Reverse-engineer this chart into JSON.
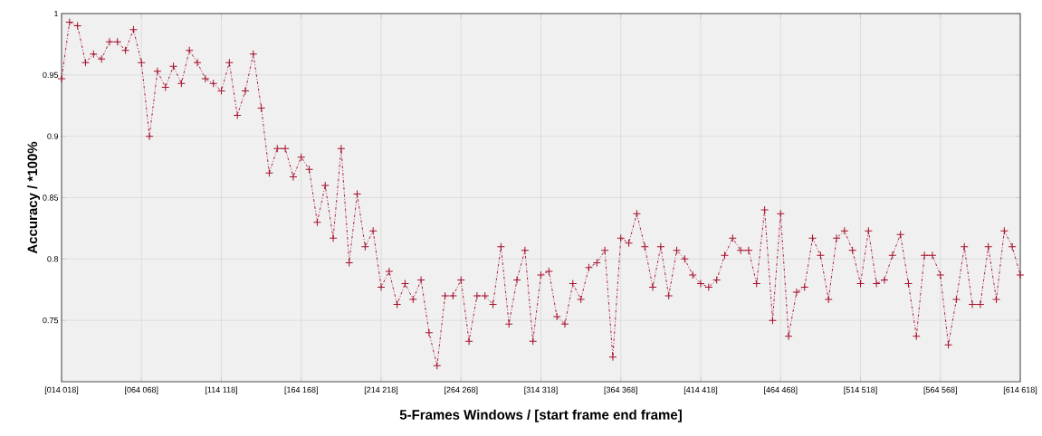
{
  "chart_data": {
    "type": "line",
    "xlabel": "5-Frames Windows / [start frame  end frame]",
    "ylabel": "Accuracy / *100%",
    "categories": [
      "[014 018]",
      null,
      null,
      null,
      null,
      null,
      null,
      null,
      null,
      null,
      "[064 068]",
      null,
      null,
      null,
      null,
      null,
      null,
      null,
      null,
      null,
      "[114 118]",
      null,
      null,
      null,
      null,
      null,
      null,
      null,
      null,
      null,
      "[164 168]",
      null,
      null,
      null,
      null,
      null,
      null,
      null,
      null,
      null,
      "[214 218]",
      null,
      null,
      null,
      null,
      null,
      null,
      null,
      null,
      null,
      "[264 268]",
      null,
      null,
      null,
      null,
      null,
      null,
      null,
      null,
      null,
      "[314 318]",
      null,
      null,
      null,
      null,
      null,
      null,
      null,
      null,
      null,
      "[364 368]",
      null,
      null,
      null,
      null,
      null,
      null,
      null,
      null,
      null,
      "[414 418]",
      null,
      null,
      null,
      null,
      null,
      null,
      null,
      null,
      null,
      "[464 468]",
      null,
      null,
      null,
      null,
      null,
      null,
      null,
      null,
      null,
      "[514 518]",
      null,
      null,
      null,
      null,
      null,
      null,
      null,
      null,
      null,
      "[564 568]",
      null,
      null,
      null,
      null,
      null,
      null,
      null,
      null,
      null,
      "[614 618]"
    ],
    "series": [
      {
        "color": "#a50f2d",
        "values": [
          0.947,
          0.993,
          0.99,
          0.96,
          0.967,
          0.963,
          0.977,
          0.977,
          0.97,
          0.987,
          0.96,
          0.9,
          0.953,
          0.94,
          0.957,
          0.943,
          0.97,
          0.96,
          0.947,
          0.943,
          0.937,
          0.96,
          0.917,
          0.937,
          0.967,
          0.923,
          0.87,
          0.89,
          0.89,
          0.867,
          0.883,
          0.873,
          0.83,
          0.86,
          0.817,
          0.89,
          0.797,
          0.853,
          0.81,
          0.823,
          0.777,
          0.79,
          0.763,
          0.78,
          0.767,
          0.783,
          0.74,
          0.713,
          0.77,
          0.77,
          0.783,
          0.733,
          0.77,
          0.77,
          0.763,
          0.81,
          0.747,
          0.783,
          0.807,
          0.733,
          0.787,
          0.79,
          0.753,
          0.747,
          0.78,
          0.767,
          0.793,
          0.797,
          0.807,
          0.72,
          0.817,
          0.813,
          0.837,
          0.81,
          0.777,
          0.81,
          0.77,
          0.807,
          0.8,
          0.787,
          0.78,
          0.777,
          0.783,
          0.803,
          0.817,
          0.807,
          0.807,
          0.78,
          0.84,
          0.75,
          0.837,
          0.737,
          0.773,
          0.777,
          0.817,
          0.803,
          0.767,
          0.817,
          0.823,
          0.807,
          0.78,
          0.823,
          0.78,
          0.783,
          0.803,
          0.82,
          0.78,
          0.737,
          0.803,
          0.803,
          0.787,
          0.73,
          0.767,
          0.81,
          0.763,
          0.763,
          0.81,
          0.767,
          0.823,
          0.81,
          0.787
        ]
      }
    ],
    "ylim": [
      0.7,
      1
    ],
    "yticks": [
      0.75,
      0.8,
      0.85,
      0.9,
      0.95,
      1
    ],
    "grid": true,
    "marker": "cross",
    "line_style": "dashed"
  }
}
